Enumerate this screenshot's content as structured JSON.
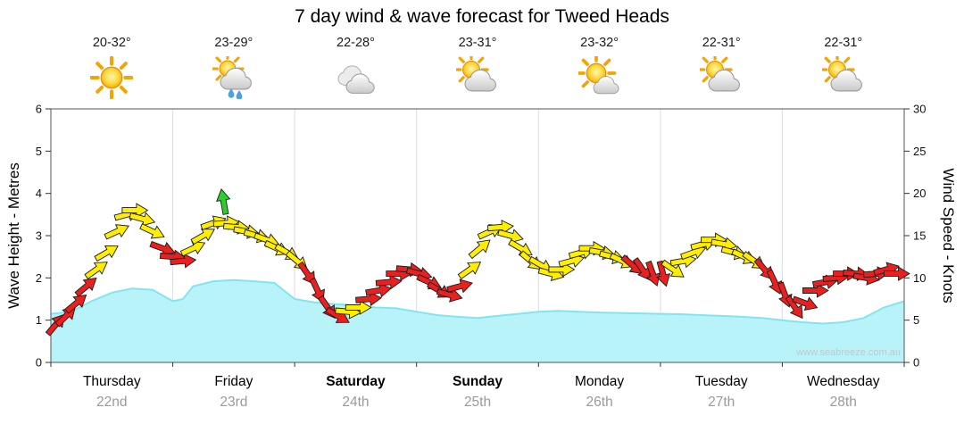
{
  "title": "7 day wind & wave forecast for Tweed Heads",
  "watermark": "www.seabreeze.com.au",
  "days": [
    {
      "name": "Thursday",
      "date": "22nd",
      "temp": "20-32°",
      "icon": "sunny",
      "weekend": false
    },
    {
      "name": "Friday",
      "date": "23rd",
      "temp": "23-29°",
      "icon": "rain-shower",
      "weekend": false
    },
    {
      "name": "Saturday",
      "date": "24th",
      "temp": "22-28°",
      "icon": "cloudy",
      "weekend": true
    },
    {
      "name": "Sunday",
      "date": "25th",
      "temp": "23-31°",
      "icon": "partly-cloudy",
      "weekend": true
    },
    {
      "name": "Monday",
      "date": "26th",
      "temp": "23-32°",
      "icon": "mostly-sunny",
      "weekend": false
    },
    {
      "name": "Tuesday",
      "date": "27th",
      "temp": "22-31°",
      "icon": "partly-cloudy",
      "weekend": false
    },
    {
      "name": "Wednesday",
      "date": "28th",
      "temp": "22-31°",
      "icon": "partly-cloudy",
      "weekend": false
    }
  ],
  "axes": {
    "left_label": "Wave Height - Metres",
    "right_label": "Wind Speed - Knots",
    "left_ticks": [
      0,
      1,
      2,
      3,
      4,
      5,
      6
    ],
    "right_ticks": [
      0,
      5,
      10,
      15,
      20,
      25,
      30
    ]
  },
  "chart_data": {
    "type": "combo",
    "x_unit": "hours",
    "x_range_hours": [
      0,
      168
    ],
    "day_span_hours": 24,
    "wave": {
      "name": "Wave Height",
      "units": "m",
      "ylim": [
        0,
        6
      ],
      "fill": "#b9f3fa",
      "stroke": "#82e4f0",
      "points": [
        [
          0,
          1.15
        ],
        [
          4,
          1.2
        ],
        [
          8,
          1.45
        ],
        [
          12,
          1.65
        ],
        [
          16,
          1.75
        ],
        [
          20,
          1.72
        ],
        [
          24,
          1.45
        ],
        [
          26,
          1.5
        ],
        [
          28,
          1.8
        ],
        [
          32,
          1.92
        ],
        [
          36,
          1.95
        ],
        [
          40,
          1.92
        ],
        [
          44,
          1.88
        ],
        [
          48,
          1.5
        ],
        [
          52,
          1.42
        ],
        [
          56,
          1.38
        ],
        [
          60,
          1.35
        ],
        [
          64,
          1.3
        ],
        [
          68,
          1.28
        ],
        [
          72,
          1.2
        ],
        [
          76,
          1.12
        ],
        [
          80,
          1.08
        ],
        [
          84,
          1.05
        ],
        [
          88,
          1.1
        ],
        [
          92,
          1.15
        ],
        [
          96,
          1.2
        ],
        [
          100,
          1.22
        ],
        [
          104,
          1.2
        ],
        [
          108,
          1.18
        ],
        [
          112,
          1.17
        ],
        [
          116,
          1.16
        ],
        [
          120,
          1.15
        ],
        [
          124,
          1.14
        ],
        [
          128,
          1.12
        ],
        [
          132,
          1.1
        ],
        [
          136,
          1.08
        ],
        [
          140,
          1.05
        ],
        [
          144,
          1.0
        ],
        [
          148,
          0.95
        ],
        [
          152,
          0.92
        ],
        [
          156,
          0.95
        ],
        [
          160,
          1.05
        ],
        [
          164,
          1.3
        ],
        [
          168,
          1.45
        ]
      ]
    },
    "wind": {
      "name": "Wind Speed",
      "units": "knots",
      "ylim": [
        0,
        30
      ],
      "arrow_colors": {
        "y": "#ffee00",
        "r": "#e82020",
        "g": "#2ecc2e"
      },
      "arrows": [
        [
          1,
          4.5,
          -50,
          "r"
        ],
        [
          3,
          5.5,
          -45,
          "r"
        ],
        [
          5,
          7,
          -40,
          "r"
        ],
        [
          7,
          9,
          -40,
          "r"
        ],
        [
          9,
          11,
          -35,
          "y"
        ],
        [
          11,
          13,
          -30,
          "y"
        ],
        [
          13,
          15.5,
          -25,
          "y"
        ],
        [
          15,
          17.5,
          -15,
          "y"
        ],
        [
          16.5,
          18,
          0,
          "y"
        ],
        [
          18,
          17,
          15,
          "y"
        ],
        [
          20,
          15.5,
          25,
          "y"
        ],
        [
          22,
          13.5,
          20,
          "r"
        ],
        [
          24,
          12.5,
          5,
          "r"
        ],
        [
          26,
          12,
          -5,
          "r"
        ],
        [
          28,
          13.5,
          -25,
          "y"
        ],
        [
          30,
          15,
          -30,
          "y"
        ],
        [
          32,
          16.5,
          -20,
          "y"
        ],
        [
          34,
          19,
          -100,
          "g"
        ],
        [
          34.5,
          16.5,
          -5,
          "y"
        ],
        [
          36.5,
          16,
          5,
          "y"
        ],
        [
          38.5,
          15.5,
          10,
          "y"
        ],
        [
          40.5,
          15,
          15,
          "y"
        ],
        [
          42.5,
          14.5,
          20,
          "y"
        ],
        [
          44.5,
          13.5,
          25,
          "y"
        ],
        [
          46.5,
          13,
          30,
          "y"
        ],
        [
          48.5,
          12,
          40,
          "y"
        ],
        [
          50.5,
          10.5,
          55,
          "r"
        ],
        [
          52.5,
          8.5,
          65,
          "r"
        ],
        [
          54.5,
          6.5,
          55,
          "r"
        ],
        [
          56.5,
          5.5,
          30,
          "r"
        ],
        [
          58.5,
          6,
          5,
          "y"
        ],
        [
          60.5,
          6.5,
          0,
          "y"
        ],
        [
          62.5,
          7.5,
          -5,
          "r"
        ],
        [
          64.5,
          8.5,
          -10,
          "r"
        ],
        [
          66.5,
          9.5,
          -5,
          "r"
        ],
        [
          68.5,
          10.5,
          0,
          "r"
        ],
        [
          70.5,
          11,
          5,
          "r"
        ],
        [
          72.5,
          10.5,
          15,
          "r"
        ],
        [
          74.5,
          9.5,
          25,
          "r"
        ],
        [
          76.5,
          8.5,
          30,
          "r"
        ],
        [
          78.5,
          8,
          15,
          "r"
        ],
        [
          80.5,
          9,
          -15,
          "r"
        ],
        [
          82.5,
          11,
          -35,
          "y"
        ],
        [
          84.5,
          13.5,
          -40,
          "y"
        ],
        [
          86.5,
          15.5,
          -25,
          "y"
        ],
        [
          88.5,
          16,
          -5,
          "y"
        ],
        [
          90.5,
          15,
          15,
          "y"
        ],
        [
          92.5,
          13.5,
          30,
          "y"
        ],
        [
          94.5,
          12,
          40,
          "y"
        ],
        [
          96.5,
          11.5,
          30,
          "y"
        ],
        [
          98.5,
          10.5,
          15,
          "y"
        ],
        [
          100.5,
          11,
          0,
          "y"
        ],
        [
          102.5,
          12,
          -15,
          "y"
        ],
        [
          104.5,
          13,
          -15,
          "y"
        ],
        [
          106.5,
          13.5,
          0,
          "y"
        ],
        [
          108.5,
          13,
          10,
          "y"
        ],
        [
          110.5,
          12.5,
          15,
          "y"
        ],
        [
          112.5,
          12,
          25,
          "y"
        ],
        [
          114.5,
          11.5,
          40,
          "r"
        ],
        [
          116.5,
          11,
          55,
          "r"
        ],
        [
          118.5,
          10.5,
          70,
          "r"
        ],
        [
          120.5,
          10.5,
          75,
          "r"
        ],
        [
          122.5,
          11,
          35,
          "y"
        ],
        [
          124.5,
          12,
          -10,
          "y"
        ],
        [
          126.5,
          13,
          -20,
          "y"
        ],
        [
          128.5,
          14,
          -15,
          "y"
        ],
        [
          130.5,
          14.5,
          0,
          "y"
        ],
        [
          132.5,
          14,
          10,
          "y"
        ],
        [
          134.5,
          13,
          15,
          "y"
        ],
        [
          136.5,
          12.5,
          25,
          "y"
        ],
        [
          138.5,
          12,
          35,
          "y"
        ],
        [
          140.5,
          11,
          50,
          "r"
        ],
        [
          142.5,
          9.5,
          65,
          "r"
        ],
        [
          144.5,
          8,
          70,
          "r"
        ],
        [
          146.5,
          6.5,
          55,
          "r"
        ],
        [
          148.5,
          7,
          20,
          "r"
        ],
        [
          150.5,
          8.5,
          0,
          "r"
        ],
        [
          152.5,
          9.5,
          -10,
          "r"
        ],
        [
          154.5,
          10,
          -5,
          "r"
        ],
        [
          156.5,
          10.5,
          0,
          "r"
        ],
        [
          158.5,
          10.5,
          5,
          "r"
        ],
        [
          160.5,
          10,
          10,
          "r"
        ],
        [
          162.5,
          10.5,
          -5,
          "r"
        ],
        [
          164.5,
          11,
          -15,
          "r"
        ],
        [
          166.5,
          10.5,
          0,
          "r"
        ]
      ]
    }
  }
}
